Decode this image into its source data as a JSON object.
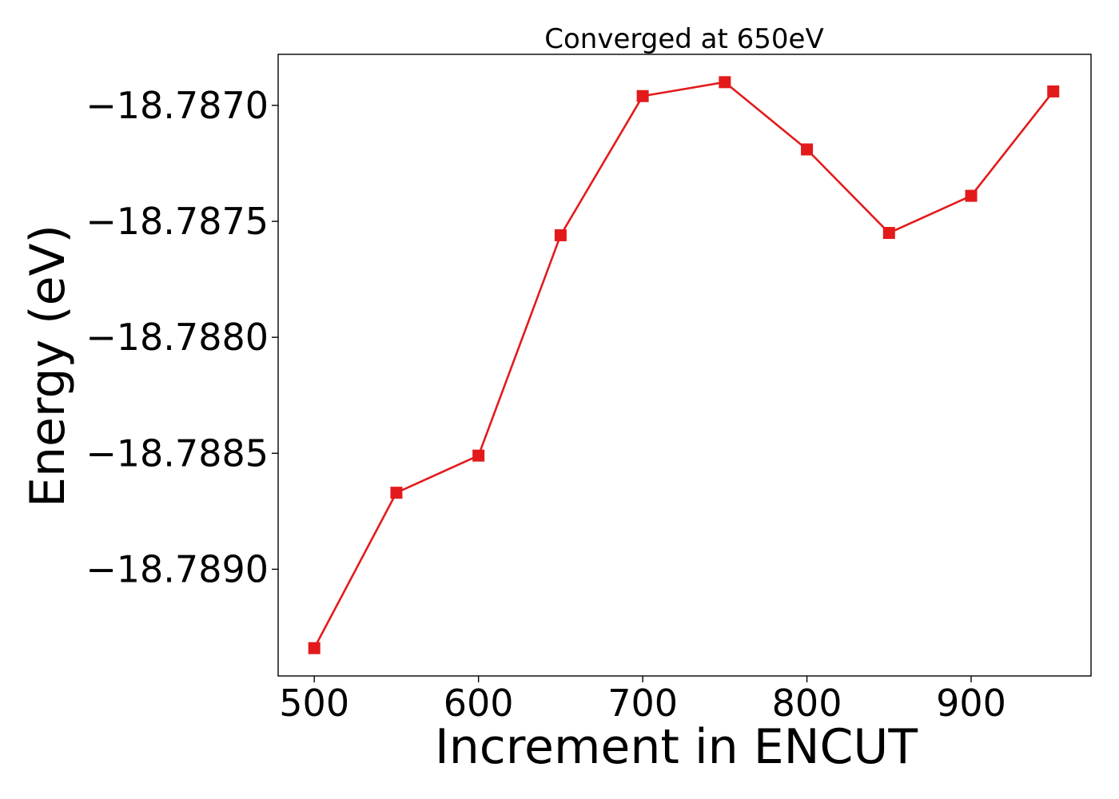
{
  "chart_data": {
    "type": "line",
    "title": "Converged at 650eV",
    "xlabel": "Increment in ENCUT",
    "ylabel": "Energy (eV)",
    "x": [
      500,
      550,
      600,
      650,
      700,
      750,
      800,
      850,
      900,
      950
    ],
    "series": [
      {
        "values": [
          -18.78934,
          -18.78867,
          -18.78851,
          -18.78756,
          -18.78696,
          -18.7869,
          -18.78719,
          -18.78755,
          -18.78739,
          -18.78694
        ],
        "color": "#e31a1c",
        "marker": "square"
      }
    ],
    "xlim": [
      478,
      973
    ],
    "ylim": [
      -18.78946,
      -18.78678
    ],
    "xticks": [
      500,
      600,
      700,
      800,
      900
    ],
    "xtick_labels": [
      "500",
      "600",
      "700",
      "800",
      "900"
    ],
    "yticks": [
      -18.787,
      -18.7875,
      -18.788,
      -18.7885,
      -18.789
    ],
    "ytick_labels": [
      "−18.7870",
      "−18.7875",
      "−18.7880",
      "−18.7885",
      "−18.7890"
    ],
    "grid": false,
    "legend": "none"
  }
}
